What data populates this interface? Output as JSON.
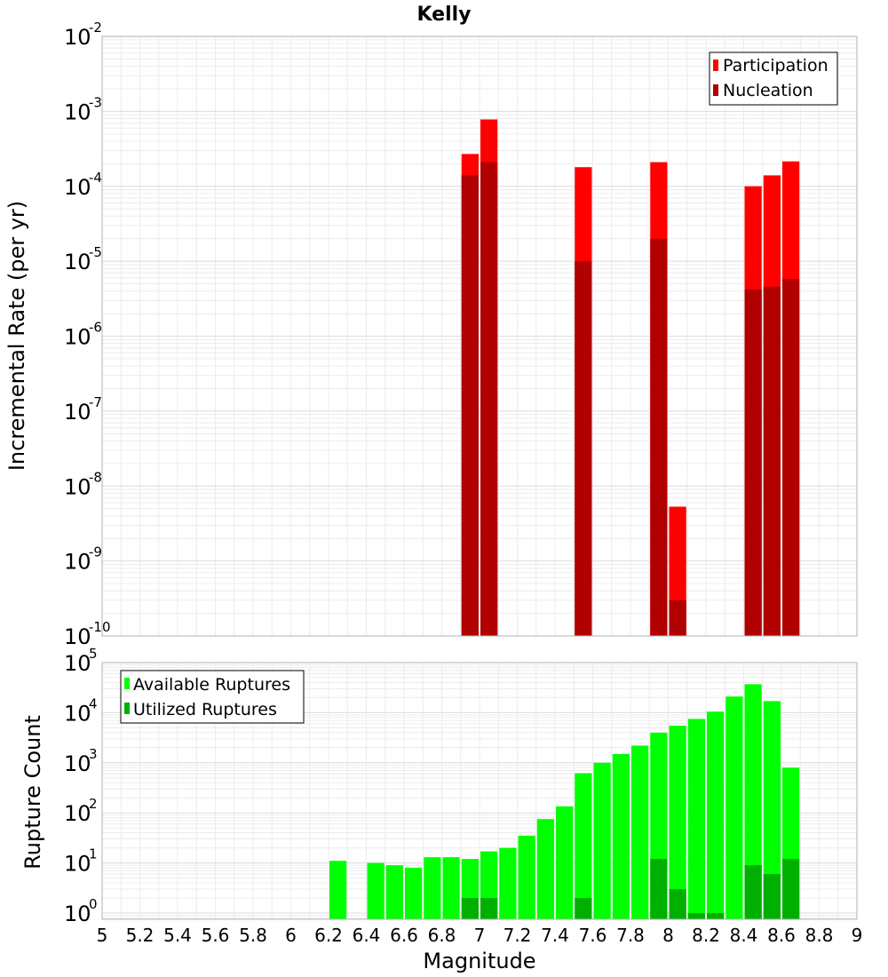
{
  "chart_data": [
    {
      "type": "bar",
      "title": "Kelly",
      "xlabel": "",
      "ylabel": "Incremental Rate (per yr)",
      "yscale": "log",
      "ylim": [
        1e-10,
        0.01
      ],
      "xlim": [
        5,
        9
      ],
      "bin_width": 0.1,
      "y_tick_base": "10",
      "y_tick_exponents": [
        "-10",
        "-9",
        "-8",
        "-7",
        "-6",
        "-5",
        "-4",
        "-3",
        "-2"
      ],
      "legend": {
        "position": "top-right"
      },
      "series": [
        {
          "name": "Participation",
          "color": "#ff0000",
          "x": [
            6.95,
            7.05,
            7.55,
            7.95,
            8.05,
            8.45,
            8.55,
            8.65
          ],
          "values": [
            0.00027,
            0.00078,
            0.00018,
            0.00021,
            5.3e-09,
            0.0001,
            0.00014,
            0.000215
          ]
        },
        {
          "name": "Nucleation",
          "color": "#b00000",
          "x": [
            6.95,
            7.05,
            7.55,
            7.95,
            8.05,
            8.45,
            8.55,
            8.65
          ],
          "values": [
            0.00014,
            0.00021,
            1e-05,
            2e-05,
            3e-10,
            4.2e-06,
            4.6e-06,
            5.8e-06
          ]
        }
      ]
    },
    {
      "type": "bar",
      "title": "",
      "xlabel": "Magnitude",
      "ylabel": "Rupture Count",
      "yscale": "log",
      "ylim": [
        0.75,
        100000.0
      ],
      "xlim": [
        5,
        9
      ],
      "bin_width": 0.1,
      "y_tick_base": "10",
      "y_tick_exponents": [
        "0",
        "1",
        "2",
        "3",
        "4",
        "5"
      ],
      "x_ticks": [
        "5",
        "5.2",
        "5.4",
        "5.6",
        "5.8",
        "6",
        "6.2",
        "6.4",
        "6.6",
        "6.8",
        "7",
        "7.2",
        "7.4",
        "7.6",
        "7.8",
        "8",
        "8.2",
        "8.4",
        "8.6",
        "8.8",
        "9"
      ],
      "legend": {
        "position": "top-left"
      },
      "series": [
        {
          "name": "Available Ruptures",
          "color": "#00ff00",
          "x": [
            6.25,
            6.45,
            6.55,
            6.65,
            6.75,
            6.85,
            6.95,
            7.05,
            7.15,
            7.25,
            7.35,
            7.45,
            7.55,
            7.65,
            7.75,
            7.85,
            7.95,
            8.05,
            8.15,
            8.25,
            8.35,
            8.45,
            8.55,
            8.65
          ],
          "values": [
            11,
            10,
            9,
            8,
            13,
            13,
            12,
            17,
            20,
            35,
            75,
            135,
            620,
            1000,
            1500,
            2200,
            4000,
            5500,
            7500,
            10500,
            21000,
            37000,
            17000,
            800
          ]
        },
        {
          "name": "Utilized Ruptures",
          "color": "#00b000",
          "x": [
            6.95,
            7.05,
            7.55,
            7.95,
            8.05,
            8.15,
            8.25,
            8.45,
            8.55,
            8.65
          ],
          "values": [
            2,
            2,
            2,
            12,
            3,
            1,
            1,
            9,
            6,
            12
          ]
        }
      ]
    }
  ]
}
